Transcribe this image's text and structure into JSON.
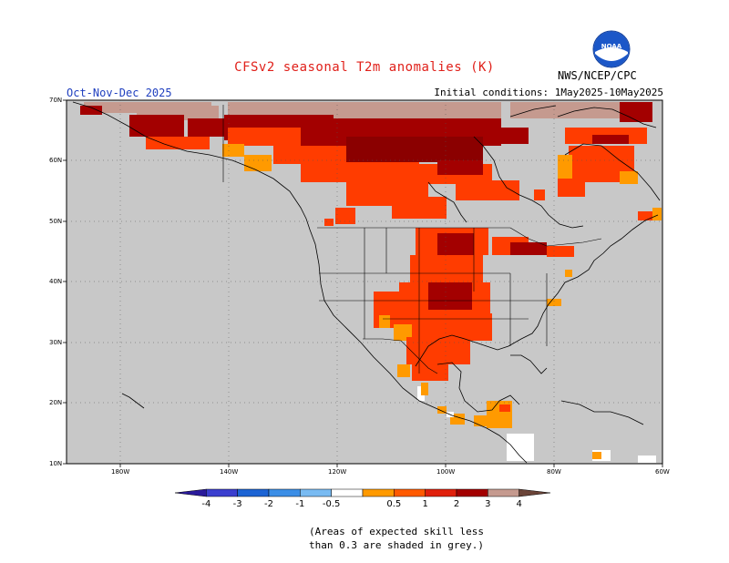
{
  "title": "CFSv2 seasonal T2m anomalies (K)",
  "season": "Oct-Nov-Dec 2025",
  "initial_conditions": "Initial conditions: 1May2025-10May2025",
  "credit": "NWS/NCEP/CPC",
  "logo_text": "NOAA",
  "icons": [
    "noaa-logo-icon"
  ],
  "map": {
    "background_color": "#c8c8c8",
    "lat_labels": [
      "70N",
      "60N",
      "50N",
      "40N",
      "30N",
      "20N",
      "10N"
    ],
    "lon_labels": [
      "180W",
      "140W",
      "120W",
      "100W",
      "80W",
      "60W"
    ]
  },
  "legend": {
    "labels": [
      "-4",
      "-3",
      "-2",
      "-1",
      "-0.5",
      "0.5",
      "1",
      "2",
      "3",
      "4"
    ],
    "colors": [
      "#2a1a9b",
      "#3b3fcf",
      "#1c64d4",
      "#3b8ee6",
      "#79bbf2",
      "#ffffff",
      "#ff9a00",
      "#ff5a00",
      "#e0200c",
      "#a30000",
      "#c59a8f",
      "#6b4438"
    ],
    "gray_note": "grey"
  },
  "note": {
    "line1": "(Areas of expected skill less",
    "line2": "than 0.3 are shaded in grey.)"
  }
}
